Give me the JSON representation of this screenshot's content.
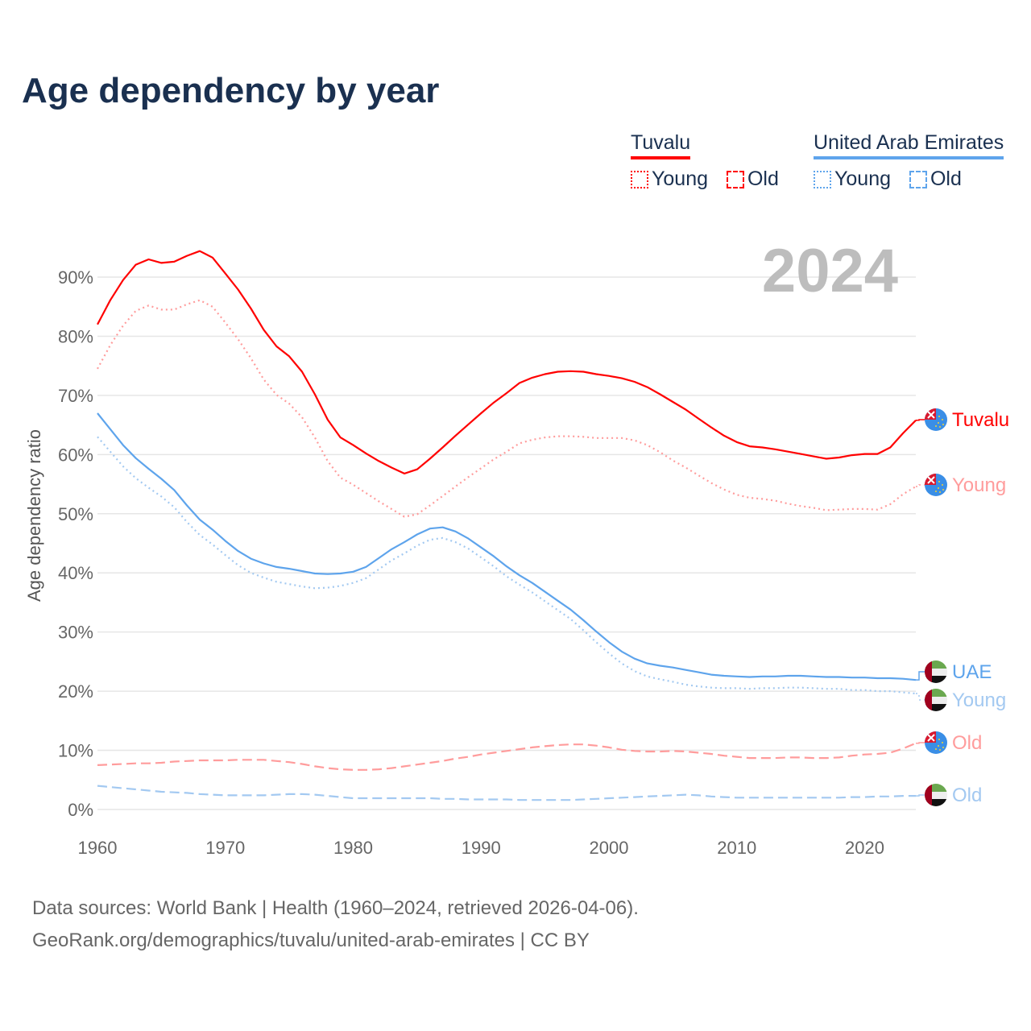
{
  "title": "Age dependency by year",
  "legend": {
    "groups": [
      {
        "name": "Tuvalu",
        "color": "#ff0000",
        "items": [
          {
            "label": "Young",
            "style": "dotted"
          },
          {
            "label": "Old",
            "style": "dashed"
          }
        ]
      },
      {
        "name": "United Arab Emirates",
        "color": "#5ea4ec",
        "items": [
          {
            "label": "Young",
            "style": "dotted"
          },
          {
            "label": "Old",
            "style": "dashed"
          }
        ]
      }
    ]
  },
  "source": {
    "line1": "Data sources: World Bank | Health (1960–2024, retrieved 2026-04-06).",
    "line2": "GeoRank.org/demographics/tuvalu/united-arab-emirates | CC BY"
  },
  "chart_data": {
    "type": "line",
    "title": "Age dependency by year",
    "year_watermark": "2024",
    "xlabel": "",
    "ylabel": "Age dependency ratio",
    "xlim": [
      1960,
      2024
    ],
    "ylim": [
      0,
      95
    ],
    "x_ticks": [
      1960,
      1970,
      1980,
      1990,
      2000,
      2010,
      2020
    ],
    "x_tick_labels": [
      "1960",
      "1970",
      "1980",
      "1990",
      "2000",
      "2010",
      "2020"
    ],
    "y_ticks": [
      0,
      10,
      20,
      30,
      40,
      50,
      60,
      70,
      80,
      90
    ],
    "y_tick_labels": [
      "0%",
      "10%",
      "20%",
      "30%",
      "40%",
      "50%",
      "60%",
      "70%",
      "80%",
      "90%"
    ],
    "grid": true,
    "x_start": 1960,
    "series": [
      {
        "name": "Tuvalu",
        "end_label": "Tuvalu",
        "country": "tuvalu",
        "color": "#ff0000",
        "style": "solid",
        "values": [
          82.0,
          86.1,
          89.5,
          92.1,
          93.0,
          92.4,
          92.6,
          93.6,
          94.4,
          93.3,
          90.6,
          87.9,
          84.7,
          81.1,
          78.3,
          76.6,
          74.0,
          70.2,
          65.9,
          62.9,
          61.6,
          60.2,
          58.9,
          57.8,
          56.8,
          57.5,
          59.3,
          61.2,
          63.2,
          65.1,
          67.0,
          68.8,
          70.4,
          72.1,
          73.0,
          73.6,
          74.0,
          74.1,
          74.0,
          73.6,
          73.3,
          72.9,
          72.3,
          71.4,
          70.2,
          68.9,
          67.6,
          66.1,
          64.6,
          63.2,
          62.1,
          61.4,
          61.2,
          60.9,
          60.5,
          60.1,
          59.7,
          59.3,
          59.5,
          59.9,
          60.1,
          60.1,
          61.2,
          63.6,
          65.8
        ]
      },
      {
        "name": "Tuvalu Young",
        "end_label": "Young",
        "country": "tuvalu",
        "color": "#ff9c9c",
        "style": "dotted",
        "values": [
          74.5,
          78.5,
          81.8,
          84.3,
          85.2,
          84.5,
          84.5,
          85.4,
          86.1,
          85.0,
          82.3,
          79.5,
          76.3,
          72.7,
          70.1,
          68.6,
          66.3,
          62.9,
          58.9,
          56.1,
          54.9,
          53.5,
          52.1,
          50.8,
          49.5,
          49.9,
          51.4,
          53.0,
          54.6,
          56.2,
          57.7,
          59.2,
          60.5,
          61.9,
          62.5,
          62.9,
          63.1,
          63.1,
          63.0,
          62.8,
          62.8,
          62.8,
          62.4,
          61.6,
          60.4,
          59.0,
          57.8,
          56.5,
          55.2,
          54.1,
          53.2,
          52.7,
          52.5,
          52.2,
          51.7,
          51.3,
          51.0,
          50.6,
          50.7,
          50.8,
          50.8,
          50.7,
          51.6,
          53.3,
          54.6
        ]
      },
      {
        "name": "United Arab Emirates",
        "end_label": "UAE",
        "country": "uae",
        "color": "#5ea4ec",
        "style": "solid",
        "values": [
          67.0,
          64.3,
          61.6,
          59.4,
          57.6,
          55.9,
          54.0,
          51.4,
          49.0,
          47.3,
          45.4,
          43.7,
          42.4,
          41.6,
          41.0,
          40.7,
          40.3,
          39.9,
          39.8,
          39.9,
          40.2,
          41.0,
          42.5,
          44.0,
          45.2,
          46.5,
          47.5,
          47.7,
          47.0,
          45.8,
          44.3,
          42.8,
          41.1,
          39.6,
          38.3,
          36.8,
          35.3,
          33.8,
          32.0,
          30.1,
          28.3,
          26.7,
          25.5,
          24.7,
          24.3,
          24.0,
          23.6,
          23.2,
          22.8,
          22.6,
          22.5,
          22.4,
          22.5,
          22.5,
          22.6,
          22.6,
          22.5,
          22.4,
          22.4,
          22.3,
          22.3,
          22.2,
          22.2,
          22.1,
          21.9
        ]
      },
      {
        "name": "United Arab Emirates Young",
        "end_label": "Young",
        "country": "uae",
        "color": "#a3c9f1",
        "style": "dotted",
        "values": [
          63.0,
          60.5,
          58.0,
          56.0,
          54.4,
          52.9,
          51.1,
          48.6,
          46.4,
          44.8,
          43.0,
          41.3,
          40.0,
          39.2,
          38.5,
          38.1,
          37.7,
          37.4,
          37.5,
          37.8,
          38.3,
          39.1,
          40.6,
          42.1,
          43.3,
          44.6,
          45.6,
          45.9,
          45.2,
          44.1,
          42.6,
          41.1,
          39.4,
          38.0,
          36.7,
          35.2,
          33.7,
          32.2,
          30.3,
          28.3,
          26.4,
          24.7,
          23.4,
          22.5,
          22.0,
          21.6,
          21.1,
          20.8,
          20.6,
          20.5,
          20.5,
          20.4,
          20.5,
          20.5,
          20.6,
          20.6,
          20.5,
          20.4,
          20.4,
          20.2,
          20.2,
          20.0,
          20.0,
          19.8,
          19.6
        ]
      },
      {
        "name": "Tuvalu Old",
        "end_label": "Old",
        "country": "tuvalu",
        "color": "#ff9c9c",
        "style": "dashed",
        "values": [
          7.5,
          7.6,
          7.7,
          7.8,
          7.8,
          7.9,
          8.1,
          8.2,
          8.3,
          8.3,
          8.3,
          8.4,
          8.4,
          8.4,
          8.2,
          8.0,
          7.7,
          7.3,
          7.0,
          6.8,
          6.7,
          6.7,
          6.8,
          7.0,
          7.3,
          7.6,
          7.9,
          8.2,
          8.6,
          8.9,
          9.3,
          9.6,
          9.9,
          10.2,
          10.5,
          10.7,
          10.9,
          11.0,
          11.0,
          10.8,
          10.5,
          10.1,
          9.9,
          9.8,
          9.8,
          9.9,
          9.8,
          9.6,
          9.4,
          9.1,
          8.9,
          8.7,
          8.7,
          8.7,
          8.8,
          8.8,
          8.7,
          8.7,
          8.8,
          9.1,
          9.3,
          9.4,
          9.6,
          10.3,
          11.2
        ]
      },
      {
        "name": "United Arab Emirates Old",
        "end_label": "Old",
        "country": "uae",
        "color": "#a3c9f1",
        "style": "dashed",
        "values": [
          4.0,
          3.8,
          3.6,
          3.4,
          3.2,
          3.0,
          2.9,
          2.8,
          2.6,
          2.5,
          2.4,
          2.4,
          2.4,
          2.4,
          2.5,
          2.6,
          2.6,
          2.5,
          2.3,
          2.1,
          1.9,
          1.9,
          1.9,
          1.9,
          1.9,
          1.9,
          1.9,
          1.8,
          1.8,
          1.7,
          1.7,
          1.7,
          1.7,
          1.6,
          1.6,
          1.6,
          1.6,
          1.6,
          1.7,
          1.8,
          1.9,
          2.0,
          2.1,
          2.2,
          2.3,
          2.4,
          2.5,
          2.4,
          2.2,
          2.1,
          2.0,
          2.0,
          2.0,
          2.0,
          2.0,
          2.0,
          2.0,
          2.0,
          2.0,
          2.1,
          2.1,
          2.2,
          2.2,
          2.3,
          2.3
        ]
      }
    ]
  }
}
